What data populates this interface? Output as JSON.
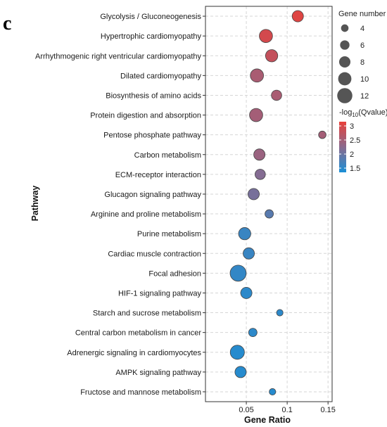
{
  "panel_label": "c",
  "chart_data": {
    "type": "scatter",
    "xlabel": "Gene Ratio",
    "ylabel": "Pathway",
    "xlim": [
      0.0,
      0.155
    ],
    "xticks": [
      0.05,
      0.1,
      0.15
    ],
    "xtick_labels": [
      "0.05",
      "0.1",
      "0.15"
    ],
    "grid": true,
    "legend_placement": "right",
    "categories": [
      "Glycolysis / Gluconeogenesis",
      "Hypertrophic cardiomyopathy",
      "Arrhythmogenic right ventricular cardiomyopathy",
      "Dilated cardiomyopathy",
      "Biosynthesis of amino acids",
      "Protein digestion and absorption",
      "Pentose phosphate pathway",
      "Carbon metabolism",
      "ECM-receptor interaction",
      "Glucagon signaling pathway",
      "Arginine and proline metabolism",
      "Purine metabolism",
      "Cardiac muscle contraction",
      "Focal adhesion",
      "HIF-1 signaling pathway",
      "Starch and sucrose metabolism",
      "Central carbon metabolism in cancer",
      "Adrenergic signaling in cardiomyocytes",
      "AMPK signaling pathway",
      "Fructose and mannose metabolism"
    ],
    "points": [
      {
        "pathway": "Glycolysis / Gluconeogenesis",
        "gene_ratio": 0.113,
        "gene_number": 8,
        "neg_log10_qvalue": 3.05
      },
      {
        "pathway": "Hypertrophic cardiomyopathy",
        "gene_ratio": 0.074,
        "gene_number": 10,
        "neg_log10_qvalue": 2.95
      },
      {
        "pathway": "Arrhythmogenic right ventricular cardiomyopathy",
        "gene_ratio": 0.081,
        "gene_number": 9,
        "neg_log10_qvalue": 2.8
      },
      {
        "pathway": "Dilated cardiomyopathy",
        "gene_ratio": 0.063,
        "gene_number": 10,
        "neg_log10_qvalue": 2.55
      },
      {
        "pathway": "Biosynthesis of amino acids",
        "gene_ratio": 0.087,
        "gene_number": 7,
        "neg_log10_qvalue": 2.55
      },
      {
        "pathway": "Protein digestion and absorption",
        "gene_ratio": 0.062,
        "gene_number": 10,
        "neg_log10_qvalue": 2.5
      },
      {
        "pathway": "Pentose phosphate pathway",
        "gene_ratio": 0.143,
        "gene_number": 4,
        "neg_log10_qvalue": 2.5
      },
      {
        "pathway": "Carbon metabolism",
        "gene_ratio": 0.066,
        "gene_number": 8,
        "neg_log10_qvalue": 2.4
      },
      {
        "pathway": "ECM-receptor interaction",
        "gene_ratio": 0.067,
        "gene_number": 7,
        "neg_log10_qvalue": 2.2
      },
      {
        "pathway": "Glucagon signaling pathway",
        "gene_ratio": 0.059,
        "gene_number": 8,
        "neg_log10_qvalue": 2.1
      },
      {
        "pathway": "Arginine and proline metabolism",
        "gene_ratio": 0.078,
        "gene_number": 5,
        "neg_log10_qvalue": 1.85
      },
      {
        "pathway": "Purine metabolism",
        "gene_ratio": 0.048,
        "gene_number": 9,
        "neg_log10_qvalue": 1.6
      },
      {
        "pathway": "Cardiac muscle contraction",
        "gene_ratio": 0.053,
        "gene_number": 8,
        "neg_log10_qvalue": 1.6
      },
      {
        "pathway": "Focal adhesion",
        "gene_ratio": 0.04,
        "gene_number": 13,
        "neg_log10_qvalue": 1.55
      },
      {
        "pathway": "HIF-1 signaling pathway",
        "gene_ratio": 0.05,
        "gene_number": 8,
        "neg_log10_qvalue": 1.5
      },
      {
        "pathway": "Starch and sucrose metabolism",
        "gene_ratio": 0.091,
        "gene_number": 3,
        "neg_log10_qvalue": 1.5
      },
      {
        "pathway": "Central carbon metabolism in cancer",
        "gene_ratio": 0.058,
        "gene_number": 5,
        "neg_log10_qvalue": 1.5
      },
      {
        "pathway": "Adrenergic signaling in cardiomyocytes",
        "gene_ratio": 0.039,
        "gene_number": 11,
        "neg_log10_qvalue": 1.45
      },
      {
        "pathway": "AMPK signaling pathway",
        "gene_ratio": 0.043,
        "gene_number": 8,
        "neg_log10_qvalue": 1.45
      },
      {
        "pathway": "Fructose and mannose metabolism",
        "gene_ratio": 0.082,
        "gene_number": 3,
        "neg_log10_qvalue": 1.45
      }
    ],
    "size_legend": {
      "title": "Gene number",
      "values": [
        4,
        6,
        8,
        10,
        12
      ]
    },
    "color_legend": {
      "title_prefix": "-log",
      "title_subscript": "10",
      "title_suffix": "(Qvalue)",
      "ticks": [
        3,
        2.5,
        2,
        1.5
      ],
      "tick_labels": [
        "3",
        "2.5",
        "2",
        "1.5"
      ],
      "range": [
        1.35,
        3.15
      ],
      "colors": {
        "low": "#1a8fd6",
        "mid": "#8a6a8e",
        "high": "#e8403a"
      }
    }
  }
}
